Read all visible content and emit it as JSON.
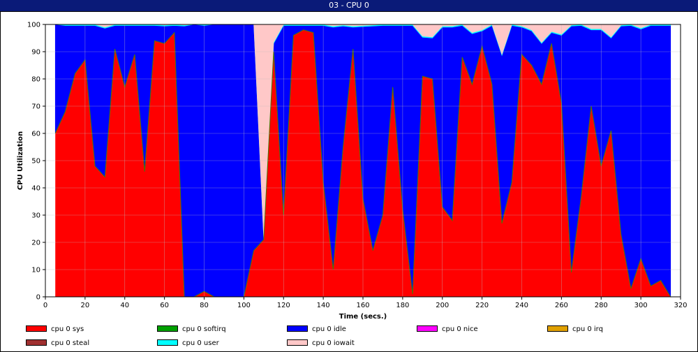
{
  "window": {
    "title": "03 - CPU 0"
  },
  "chart_data": {
    "type": "area",
    "stacked": true,
    "title": "03 - CPU 0",
    "xlabel": "Time (secs.)",
    "ylabel": "CPU Utilization",
    "xlim": [
      0,
      320
    ],
    "ylim": [
      0,
      100
    ],
    "xticks": [
      0,
      20,
      40,
      60,
      80,
      100,
      120,
      140,
      160,
      180,
      200,
      220,
      240,
      260,
      280,
      300,
      320
    ],
    "yticks": [
      0,
      10,
      20,
      30,
      40,
      50,
      60,
      70,
      80,
      90,
      100
    ],
    "grid": true,
    "legend_position": "bottom",
    "x": [
      5,
      10,
      15,
      20,
      25,
      30,
      35,
      40,
      45,
      50,
      55,
      60,
      65,
      70,
      75,
      80,
      85,
      90,
      95,
      100,
      105,
      110,
      115,
      120,
      125,
      130,
      135,
      140,
      145,
      150,
      155,
      160,
      165,
      170,
      175,
      180,
      185,
      190,
      195,
      200,
      205,
      210,
      215,
      220,
      225,
      230,
      235,
      240,
      245,
      250,
      255,
      260,
      265,
      270,
      275,
      280,
      285,
      290,
      295,
      300,
      305,
      310,
      315
    ],
    "series": [
      {
        "name": "cpu 0 sys",
        "color": "#ff0000",
        "values": [
          60,
          68,
          82,
          87,
          48,
          44,
          91,
          77,
          89,
          46,
          94,
          93,
          97,
          0,
          0,
          2,
          0,
          0,
          0,
          0,
          17,
          21,
          90,
          30,
          96,
          98,
          97,
          42,
          10,
          55,
          91,
          36,
          17,
          30,
          77,
          32,
          1,
          81,
          80,
          33,
          28,
          88,
          78,
          92,
          78,
          27,
          42,
          89,
          85,
          78,
          93,
          71,
          9,
          37,
          70,
          48,
          61,
          23,
          3,
          14,
          4,
          6,
          0
        ]
      },
      {
        "name": "cpu 0 softirq",
        "color": "#00a000",
        "values": [
          0,
          0,
          0,
          0,
          0,
          0,
          0,
          0,
          0,
          0,
          0,
          0,
          0,
          0,
          0,
          0,
          0,
          0,
          0,
          0,
          0,
          0,
          0,
          0,
          0,
          0,
          0,
          0,
          0,
          0,
          0,
          0,
          0,
          0,
          0,
          0,
          0,
          0,
          0,
          0,
          0,
          0,
          0,
          0,
          0,
          0,
          0,
          0,
          0,
          0,
          0,
          0,
          0,
          0,
          0,
          0,
          0,
          0,
          0,
          0,
          0,
          0,
          0
        ]
      },
      {
        "name": "cpu 0 idle",
        "color": "#0000ff",
        "values": [
          40,
          31.6,
          17.6,
          12.6,
          51.6,
          54.6,
          8.6,
          22.6,
          10.6,
          53.6,
          5.6,
          6.4,
          2.6,
          99.4,
          100,
          97.6,
          100,
          100,
          100,
          100,
          83,
          0,
          3,
          69.6,
          3.6,
          1.6,
          2.6,
          57.6,
          89,
          44.4,
          8,
          63.2,
          82.4,
          69.6,
          22.6,
          67.6,
          98.6,
          14.3,
          15,
          66,
          71,
          11.6,
          18.6,
          5.6,
          21.6,
          61.6,
          57.6,
          10,
          12.6,
          15,
          4,
          25,
          90.4,
          62.6,
          28,
          50,
          34,
          76.4,
          96.6,
          84.3,
          95.6,
          93.6,
          99.6
        ]
      },
      {
        "name": "cpu 0 nice",
        "color": "#ff00ff",
        "values": [
          0,
          0,
          0,
          0,
          0,
          0,
          0,
          0,
          0,
          0,
          0,
          0,
          0,
          0,
          0,
          0,
          0,
          0,
          0,
          0,
          0,
          0,
          0,
          0,
          0,
          0,
          0,
          0,
          0,
          0,
          0,
          0,
          0,
          0,
          0,
          0,
          0,
          0,
          0,
          0,
          0,
          0,
          0,
          0,
          0,
          0,
          0,
          0,
          0,
          0,
          0,
          0,
          0,
          0,
          0,
          0,
          0,
          0,
          0,
          0,
          0,
          0,
          0
        ]
      },
      {
        "name": "cpu 0 irq",
        "color": "#e0a000",
        "values": [
          0,
          0,
          0,
          0,
          0,
          0,
          0,
          0,
          0,
          0,
          0,
          0,
          0,
          0,
          0,
          0,
          0,
          0,
          0,
          0,
          0,
          0,
          0,
          0,
          0,
          0,
          0,
          0,
          0,
          0,
          0,
          0,
          0,
          0,
          0,
          0,
          0,
          0,
          0,
          0,
          0,
          0,
          0,
          0,
          0,
          0,
          0,
          0,
          0,
          0,
          0,
          0,
          0,
          0,
          0,
          0,
          0,
          0,
          0,
          0,
          0,
          0,
          0
        ]
      },
      {
        "name": "cpu 0 steal",
        "color": "#a03030",
        "values": [
          0,
          0,
          0,
          0,
          0,
          0,
          0,
          0,
          0,
          0,
          0,
          0,
          0,
          0,
          0,
          0,
          0,
          0,
          0,
          0,
          0,
          0,
          0,
          0,
          0,
          0,
          0,
          0,
          0,
          0,
          0,
          0,
          0,
          0,
          0,
          0,
          0,
          0,
          0,
          0,
          0,
          0,
          0,
          0,
          0,
          0,
          0,
          0,
          0,
          0,
          0,
          0,
          0,
          0,
          0,
          0,
          0,
          0,
          0,
          0,
          0,
          0,
          0
        ]
      },
      {
        "name": "cpu 0 user",
        "color": "#00ffff",
        "values": [
          0,
          0.4,
          0.4,
          0.4,
          0.4,
          0.4,
          0.4,
          0.4,
          0.4,
          0.4,
          0.4,
          0.4,
          0.4,
          0.4,
          0,
          0.4,
          0,
          0,
          0,
          0,
          0,
          0.4,
          0.4,
          0.4,
          0.4,
          0.4,
          0.4,
          0.4,
          0.4,
          0.4,
          0.4,
          0.4,
          0.4,
          0.4,
          0.4,
          0.4,
          0.4,
          0.4,
          0.4,
          0.4,
          0.4,
          0.4,
          0.4,
          0.4,
          0.4,
          0.4,
          0.4,
          0.4,
          0.4,
          0.4,
          0.4,
          0.4,
          0.4,
          0.4,
          0.4,
          0.4,
          0.4,
          0.4,
          0.4,
          0.4,
          0.4,
          0.4,
          0.4
        ]
      },
      {
        "name": "cpu 0 iowait",
        "color": "#ffc8c8",
        "values": [
          0,
          0,
          0,
          0,
          0,
          1,
          0,
          0,
          0,
          0,
          0,
          0.2,
          0,
          0.2,
          0,
          0,
          0,
          0,
          0,
          0,
          0,
          78.6,
          6.6,
          0,
          0,
          0,
          0,
          0,
          0.6,
          0.2,
          0.6,
          0.4,
          0.2,
          0,
          0,
          0,
          0,
          4.3,
          4.6,
          0.6,
          0.6,
          0,
          3,
          2,
          0,
          11,
          0,
          0.6,
          2,
          6.6,
          2.6,
          3.6,
          0.2,
          0,
          1.6,
          1.6,
          4.6,
          0.2,
          0,
          1.3,
          0,
          0,
          0
        ]
      }
    ]
  }
}
